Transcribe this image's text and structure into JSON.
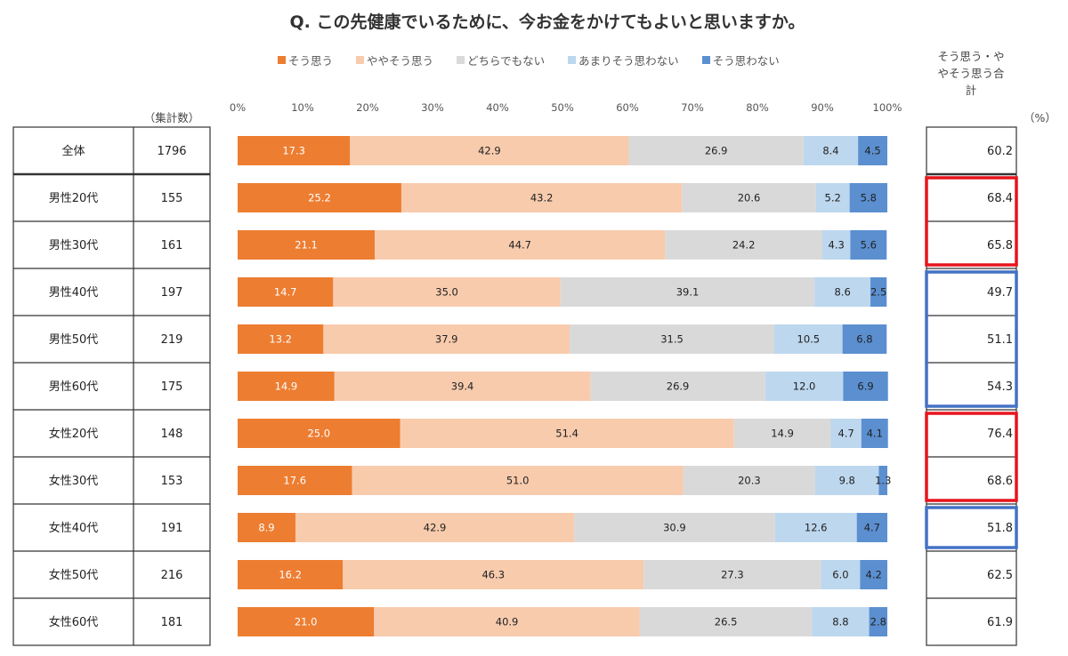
{
  "chart_data": {
    "type": "bar",
    "orientation": "horizontal",
    "stacked": "percent",
    "title": "Q. この先健康でいるために、今お金をかけてもよいと思いますか。",
    "categories": [
      "全体",
      "男性20代",
      "男性30代",
      "男性40代",
      "男性50代",
      "男性60代",
      "女性20代",
      "女性30代",
      "女性40代",
      "女性50代",
      "女性60代"
    ],
    "counts": [
      "1796",
      "155",
      "161",
      "197",
      "219",
      "175",
      "148",
      "153",
      "191",
      "216",
      "181"
    ],
    "count_header": "（集計数）",
    "series": [
      {
        "name": "そう思う",
        "color": "#ed7d31",
        "values": [
          17.3,
          25.2,
          21.1,
          14.7,
          13.2,
          14.9,
          25.0,
          17.6,
          8.9,
          16.2,
          21.0
        ],
        "labels": [
          "17.3",
          "25.2",
          "21.1",
          "14.7",
          "13.2",
          "14.9",
          "25.0",
          "17.6",
          "8.9",
          "16.2",
          "21.0"
        ]
      },
      {
        "name": "ややそう思う",
        "color": "#f8cbad",
        "values": [
          42.9,
          43.2,
          44.7,
          35.0,
          37.9,
          39.4,
          51.4,
          51.0,
          42.9,
          46.3,
          40.9
        ],
        "labels": [
          "42.9",
          "43.2",
          "44.7",
          "35.0",
          "37.9",
          "39.4",
          "51.4",
          "51.0",
          "42.9",
          "46.3",
          "40.9"
        ]
      },
      {
        "name": "どちらでもない",
        "color": "#d9d9d9",
        "values": [
          26.9,
          20.6,
          24.2,
          39.1,
          31.5,
          26.9,
          14.9,
          20.3,
          30.9,
          27.3,
          26.5
        ],
        "labels": [
          "26.9",
          "20.6",
          "24.2",
          "39.1",
          "31.5",
          "26.9",
          "14.9",
          "20.3",
          "30.9",
          "27.3",
          "26.5"
        ]
      },
      {
        "name": "あまりそう思わない",
        "color": "#bdd7ee",
        "values": [
          8.4,
          5.2,
          4.3,
          8.6,
          10.5,
          12.0,
          4.7,
          9.8,
          12.6,
          6.0,
          8.8
        ],
        "labels": [
          "8.4",
          "5.2",
          "4.3",
          "8.6",
          "10.5",
          "12.0",
          "4.7",
          "9.8",
          "12.6",
          "6.0",
          "8.8"
        ]
      },
      {
        "name": "そう思わない",
        "color": "#5b8fd0",
        "values": [
          4.5,
          5.8,
          5.6,
          2.5,
          6.8,
          6.9,
          4.1,
          1.3,
          4.7,
          4.2,
          2.8
        ],
        "labels": [
          "4.5",
          "5.8",
          "5.6",
          "2.5",
          "6.8",
          "6.9",
          "4.1",
          "1.3",
          "4.7",
          "4.2",
          "2.8"
        ]
      }
    ],
    "xlim": [
      0,
      100
    ],
    "x_ticks": [
      "0%",
      "10%",
      "20%",
      "30%",
      "40%",
      "50%",
      "60%",
      "70%",
      "80%",
      "90%",
      "100%"
    ],
    "legend_position": "top",
    "total_header": [
      "そう思う・や",
      "やそう思う合",
      "計"
    ],
    "totals": [
      "60.2",
      "68.4",
      "65.8",
      "49.7",
      "51.1",
      "54.3",
      "76.4",
      "68.6",
      "51.8",
      "62.5",
      "61.9"
    ],
    "unit": "（%）",
    "highlights": [
      {
        "rows": [
          1,
          2
        ],
        "color": "#e8141c"
      },
      {
        "rows": [
          3,
          5
        ],
        "color": "#4472c4"
      },
      {
        "rows": [
          6,
          7
        ],
        "color": "#e8141c"
      },
      {
        "rows": [
          8,
          8
        ],
        "color": "#4472c4"
      }
    ]
  }
}
